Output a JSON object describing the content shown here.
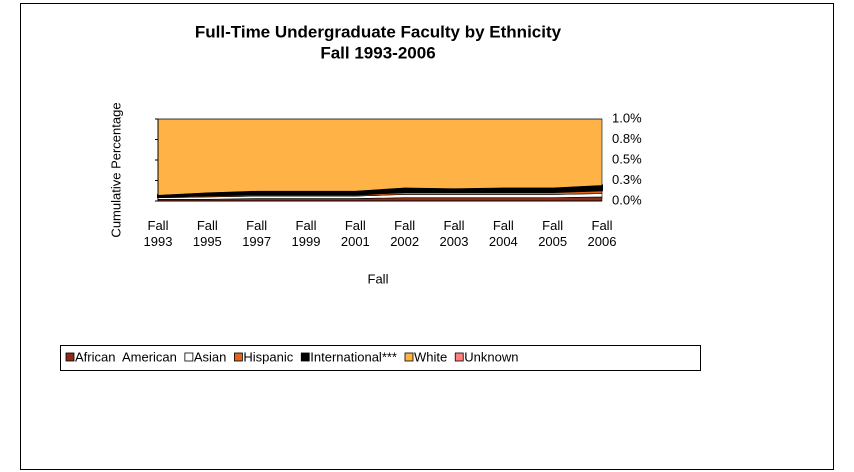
{
  "chart_data": {
    "type": "stacked-area",
    "title": "Full-Time Undergraduate Faculty by Ethnicity",
    "subtitle": "Fall 1993-2006",
    "x_label": "Fall",
    "y_label": "Cumulative Percentage",
    "categories": [
      "Fall 1993",
      "Fall 1995",
      "Fall 1997",
      "Fall 1999",
      "Fall 2001",
      "Fall 2002",
      "Fall 2003",
      "Fall 2004",
      "Fall 2005",
      "Fall 2006"
    ],
    "series": [
      {
        "name": "African  American",
        "color": "#8b2c1a",
        "values": [
          0.02,
          0.02,
          0.03,
          0.03,
          0.03,
          0.04,
          0.04,
          0.04,
          0.04,
          0.05
        ]
      },
      {
        "name": "Asian",
        "color": "#ffffff",
        "values": [
          0.02,
          0.03,
          0.03,
          0.03,
          0.03,
          0.04,
          0.04,
          0.04,
          0.04,
          0.04
        ]
      },
      {
        "name": "Hispanic",
        "color": "#e0641a",
        "values": [
          0.01,
          0.02,
          0.02,
          0.02,
          0.02,
          0.03,
          0.03,
          0.03,
          0.03,
          0.04
        ]
      },
      {
        "name": "International***",
        "color": "#000000",
        "values": [
          0.02,
          0.03,
          0.04,
          0.04,
          0.04,
          0.05,
          0.04,
          0.05,
          0.05,
          0.06
        ]
      },
      {
        "name": "White",
        "color": "#ffb347",
        "values": [
          0.93,
          0.9,
          0.88,
          0.88,
          0.88,
          0.84,
          0.85,
          0.84,
          0.84,
          0.81
        ]
      },
      {
        "name": "Unknown",
        "color": "#ff8080",
        "values": [
          0,
          0,
          0,
          0,
          0,
          0,
          0,
          0,
          0,
          0
        ]
      }
    ],
    "ylim": [
      0,
      1
    ],
    "yticks": [
      {
        "value": 0,
        "label": "0.0%"
      },
      {
        "value": 0.25,
        "label": "0.3%"
      },
      {
        "value": 0.5,
        "label": "0.5%"
      },
      {
        "value": 0.75,
        "label": "0.8%"
      },
      {
        "value": 1,
        "label": "1.0%"
      }
    ],
    "legend": "bottom"
  }
}
